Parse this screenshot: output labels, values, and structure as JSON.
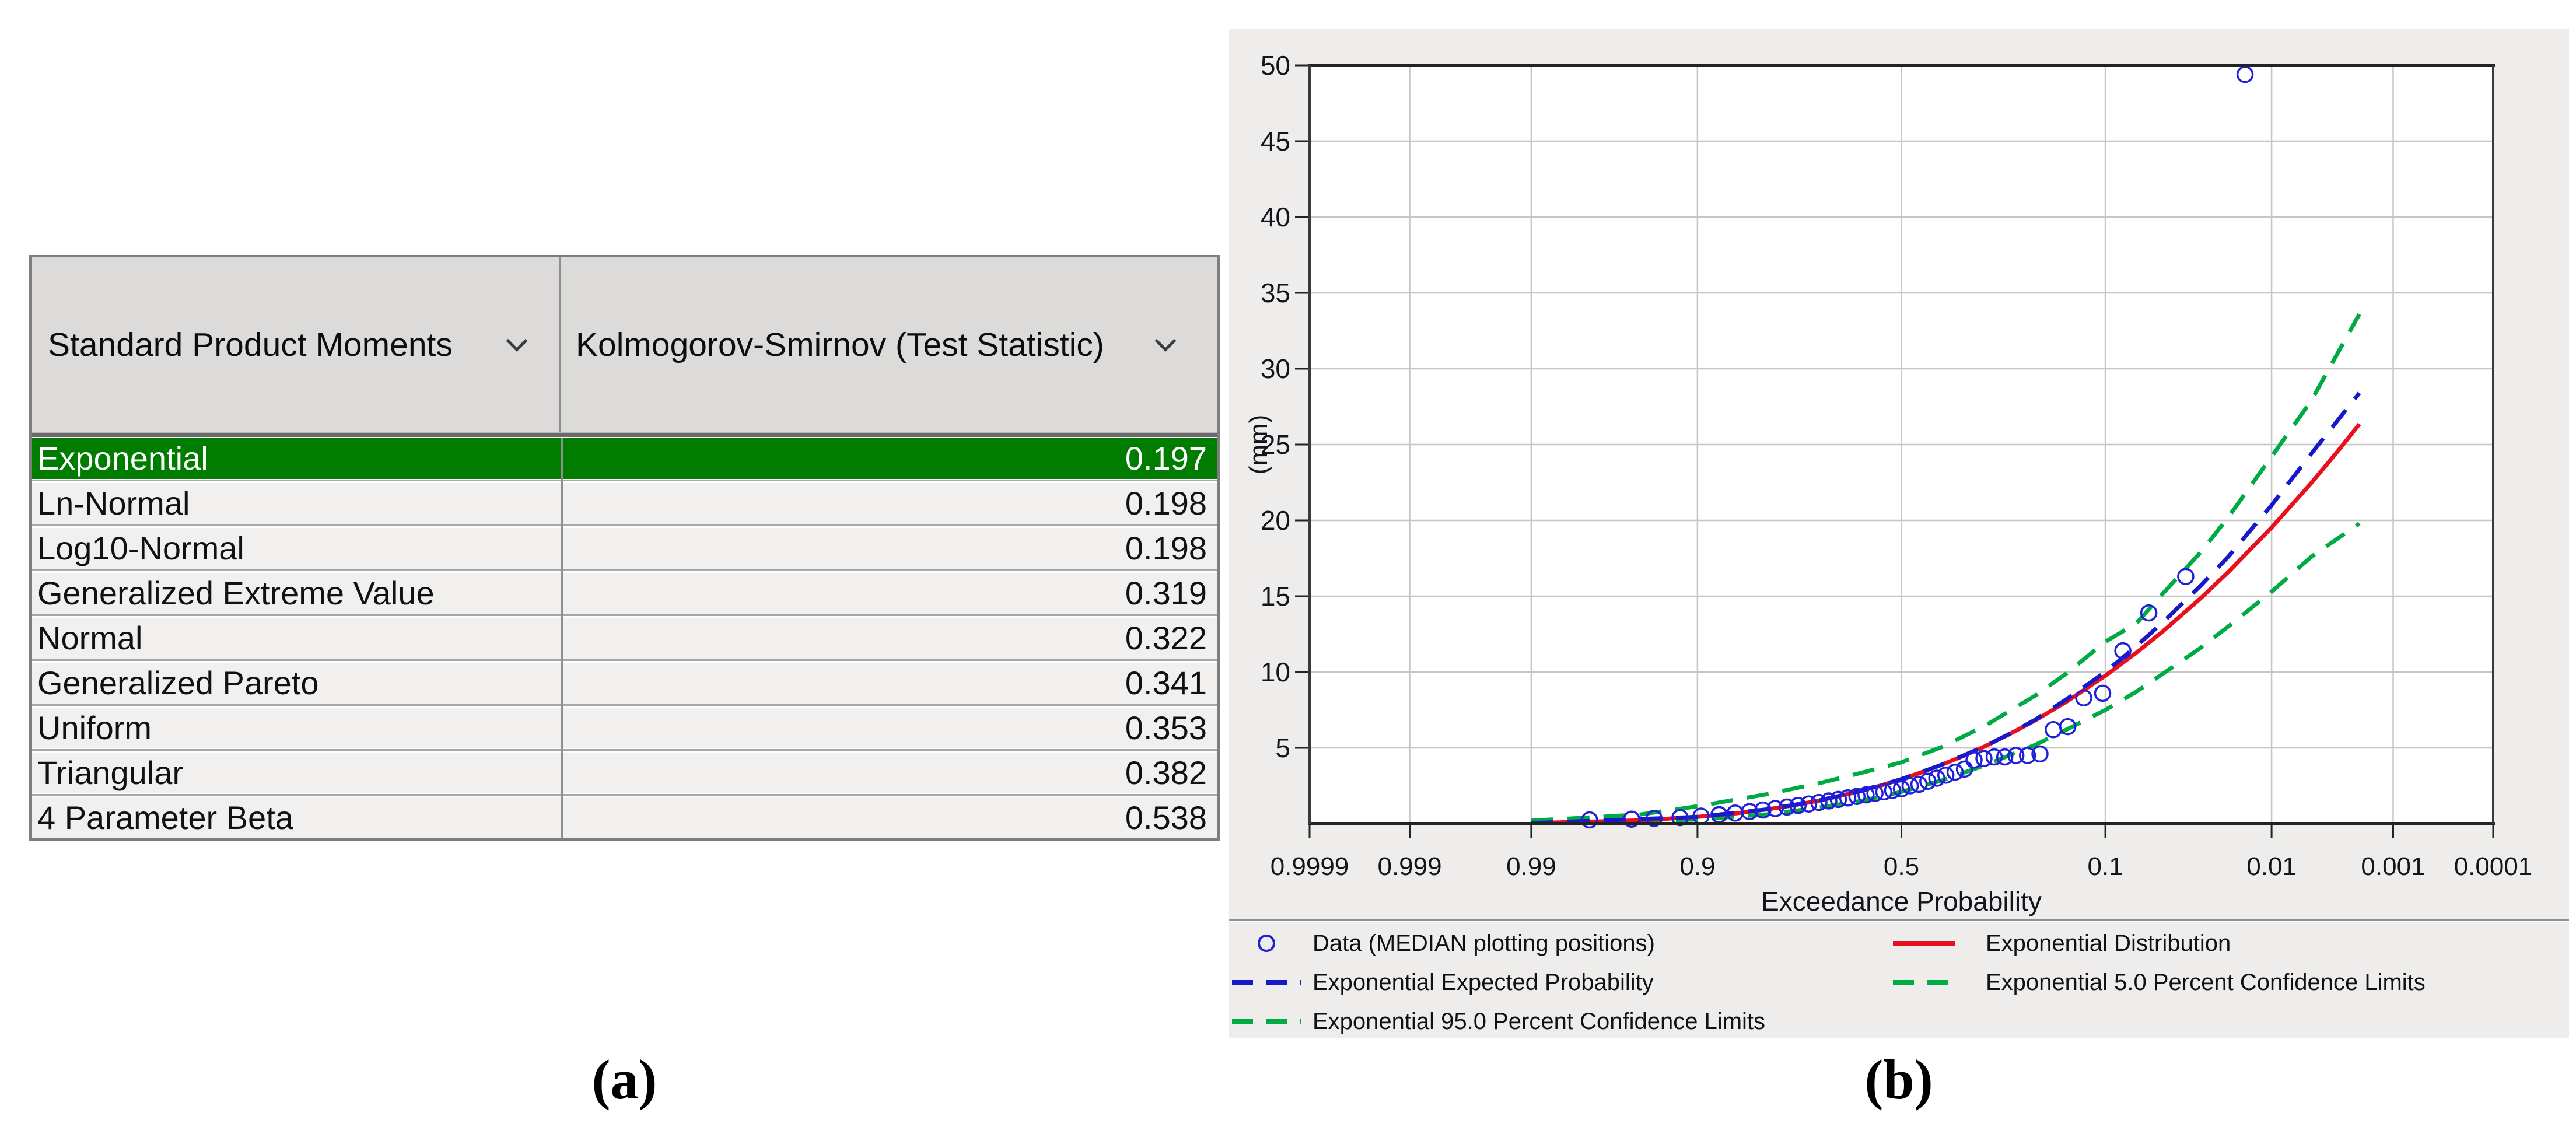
{
  "figure": {
    "caption_a": "(a)",
    "caption_b": "(b)"
  },
  "table": {
    "columns": [
      {
        "label": "Standard Product Moments"
      },
      {
        "label": "Kolmogorov-Smirnov (Test Statistic)"
      }
    ],
    "rows": [
      {
        "distribution": "Exponential",
        "statistic": "0.197"
      },
      {
        "distribution": "Ln-Normal",
        "statistic": "0.198"
      },
      {
        "distribution": "Log10-Normal",
        "statistic": "0.198"
      },
      {
        "distribution": "Generalized Extreme Value",
        "statistic": "0.319"
      },
      {
        "distribution": "Normal",
        "statistic": "0.322"
      },
      {
        "distribution": "Generalized Pareto",
        "statistic": "0.341"
      },
      {
        "distribution": "Uniform",
        "statistic": "0.353"
      },
      {
        "distribution": "Triangular",
        "statistic": "0.382"
      },
      {
        "distribution": "4 Parameter Beta",
        "statistic": "0.538"
      }
    ],
    "selected_index": 0,
    "selected_bg": "#007c00",
    "selected_text": "#ffffff"
  },
  "chart": {
    "xlabel": "Exceedance Probability",
    "ylabel": "(mm)",
    "x_ticks": [
      "0.9999",
      "0.999",
      "0.99",
      "0.9",
      "0.5",
      "0.1",
      "0.01",
      "0.001",
      "0.0001"
    ],
    "y_ticks": [
      5,
      10,
      15,
      20,
      25,
      30,
      35,
      40,
      45,
      50
    ],
    "grid_color": "#c6c6c6",
    "frame_color": "#222222",
    "legend": {
      "items": [
        {
          "label": "Data (MEDIAN plotting positions)",
          "marker": "circle",
          "color": "#2020d8",
          "col": 1,
          "row": 1
        },
        {
          "label": "Exponential Distribution",
          "marker": "solid",
          "color": "#e8101c",
          "col": 2,
          "row": 1
        },
        {
          "label": "Exponential Expected Probability",
          "marker": "dash",
          "color": "#1818c8",
          "col": 1,
          "row": 2
        },
        {
          "label": "Exponential 5.0 Percent Confidence Limits",
          "marker": "dash",
          "color": "#00ab44",
          "col": 2,
          "row": 2
        },
        {
          "label": "Exponential 95.0 Percent Confidence Limits",
          "marker": "dash",
          "color": "#00ab44",
          "col": 1,
          "row": 3
        }
      ]
    }
  },
  "chart_data": {
    "type": "scatter",
    "title": "",
    "xlabel": "Exceedance Probability",
    "ylabel": "(mm)",
    "x_scale": "normal-probability",
    "xlim": [
      0.9999,
      0.0001
    ],
    "ylim": [
      0,
      50
    ],
    "grid": true,
    "legend_position": "bottom",
    "series": [
      {
        "name": "Exponential 95.0 Percent Confidence Limits",
        "kind": "line",
        "dash": true,
        "color": "#00ab44",
        "points": [
          [
            0.99,
            0.2
          ],
          [
            0.95,
            0.6
          ],
          [
            0.9,
            1.15
          ],
          [
            0.8,
            1.95
          ],
          [
            0.7,
            2.65
          ],
          [
            0.6,
            3.35
          ],
          [
            0.5,
            4.05
          ],
          [
            0.4,
            5.05
          ],
          [
            0.3,
            6.45
          ],
          [
            0.2,
            8.45
          ],
          [
            0.15,
            9.9
          ],
          [
            0.1,
            12.0
          ],
          [
            0.07,
            13.2
          ],
          [
            0.05,
            15.2
          ],
          [
            0.03,
            17.9
          ],
          [
            0.02,
            20.2
          ],
          [
            0.01,
            24.2
          ],
          [
            0.005,
            27.9
          ],
          [
            0.002,
            33.6
          ]
        ]
      },
      {
        "name": "Exponential 5.0 Percent Confidence Limits",
        "kind": "line",
        "dash": true,
        "color": "#00ab44",
        "points": [
          [
            0.99,
            0.02
          ],
          [
            0.9,
            0.28
          ],
          [
            0.8,
            0.62
          ],
          [
            0.7,
            1.05
          ],
          [
            0.6,
            1.5
          ],
          [
            0.5,
            2.1
          ],
          [
            0.4,
            2.85
          ],
          [
            0.3,
            3.85
          ],
          [
            0.2,
            5.2
          ],
          [
            0.15,
            6.2
          ],
          [
            0.1,
            7.5
          ],
          [
            0.07,
            8.7
          ],
          [
            0.05,
            9.9
          ],
          [
            0.03,
            11.6
          ],
          [
            0.02,
            13.0
          ],
          [
            0.01,
            15.3
          ],
          [
            0.005,
            17.6
          ],
          [
            0.002,
            19.8
          ]
        ]
      },
      {
        "name": "Exponential Distribution",
        "kind": "line",
        "dash": false,
        "color": "#e8101c",
        "points": [
          [
            0.99,
            0.04
          ],
          [
            0.95,
            0.22
          ],
          [
            0.9,
            0.45
          ],
          [
            0.85,
            0.69
          ],
          [
            0.8,
            0.95
          ],
          [
            0.75,
            1.22
          ],
          [
            0.7,
            1.51
          ],
          [
            0.65,
            1.83
          ],
          [
            0.6,
            2.17
          ],
          [
            0.55,
            2.53
          ],
          [
            0.5,
            2.94
          ],
          [
            0.45,
            3.39
          ],
          [
            0.4,
            3.89
          ],
          [
            0.35,
            4.45
          ],
          [
            0.3,
            5.1
          ],
          [
            0.25,
            5.88
          ],
          [
            0.2,
            6.82
          ],
          [
            0.15,
            8.04
          ],
          [
            0.1,
            9.76
          ],
          [
            0.07,
            11.27
          ],
          [
            0.05,
            12.7
          ],
          [
            0.03,
            14.87
          ],
          [
            0.02,
            16.59
          ],
          [
            0.01,
            19.53
          ],
          [
            0.005,
            22.47
          ],
          [
            0.003,
            24.63
          ],
          [
            0.002,
            26.35
          ]
        ]
      },
      {
        "name": "Exponential Expected Probability",
        "kind": "line",
        "dash": true,
        "color": "#1818c8",
        "points": [
          [
            0.99,
            0.04
          ],
          [
            0.9,
            0.45
          ],
          [
            0.8,
            0.95
          ],
          [
            0.7,
            1.51
          ],
          [
            0.6,
            2.17
          ],
          [
            0.5,
            2.94
          ],
          [
            0.4,
            3.89
          ],
          [
            0.3,
            5.1
          ],
          [
            0.25,
            5.9
          ],
          [
            0.2,
            6.86
          ],
          [
            0.15,
            8.2
          ],
          [
            0.1,
            10.0
          ],
          [
            0.07,
            11.7
          ],
          [
            0.05,
            13.3
          ],
          [
            0.03,
            15.7
          ],
          [
            0.02,
            17.6
          ],
          [
            0.01,
            21.0
          ],
          [
            0.005,
            24.4
          ],
          [
            0.002,
            28.4
          ]
        ]
      },
      {
        "name": "Data (MEDIAN plotting positions)",
        "kind": "points",
        "color": "#2020d8",
        "points": [
          [
            0.0154,
            49.4
          ],
          [
            0.037,
            16.3
          ],
          [
            0.06,
            13.9
          ],
          [
            0.082,
            11.4
          ],
          [
            0.103,
            8.6
          ],
          [
            0.126,
            8.3
          ],
          [
            0.148,
            6.4
          ],
          [
            0.17,
            6.2
          ],
          [
            0.192,
            4.6
          ],
          [
            0.214,
            4.5
          ],
          [
            0.236,
            4.5
          ],
          [
            0.258,
            4.4
          ],
          [
            0.28,
            4.4
          ],
          [
            0.302,
            4.3
          ],
          [
            0.324,
            4.2
          ],
          [
            0.346,
            3.6
          ],
          [
            0.368,
            3.4
          ],
          [
            0.39,
            3.2
          ],
          [
            0.412,
            3.0
          ],
          [
            0.434,
            2.8
          ],
          [
            0.456,
            2.6
          ],
          [
            0.478,
            2.5
          ],
          [
            0.5,
            2.3
          ],
          [
            0.522,
            2.2
          ],
          [
            0.544,
            2.1
          ],
          [
            0.566,
            2.0
          ],
          [
            0.588,
            1.9
          ],
          [
            0.61,
            1.8
          ],
          [
            0.632,
            1.7
          ],
          [
            0.654,
            1.6
          ],
          [
            0.676,
            1.5
          ],
          [
            0.698,
            1.4
          ],
          [
            0.72,
            1.3
          ],
          [
            0.742,
            1.2
          ],
          [
            0.764,
            1.1
          ],
          [
            0.786,
            1.0
          ],
          [
            0.808,
            0.9
          ],
          [
            0.83,
            0.8
          ],
          [
            0.852,
            0.7
          ],
          [
            0.874,
            0.6
          ],
          [
            0.896,
            0.5
          ],
          [
            0.918,
            0.4
          ],
          [
            0.94,
            0.35
          ],
          [
            0.955,
            0.3
          ],
          [
            0.975,
            0.25
          ]
        ]
      }
    ]
  }
}
